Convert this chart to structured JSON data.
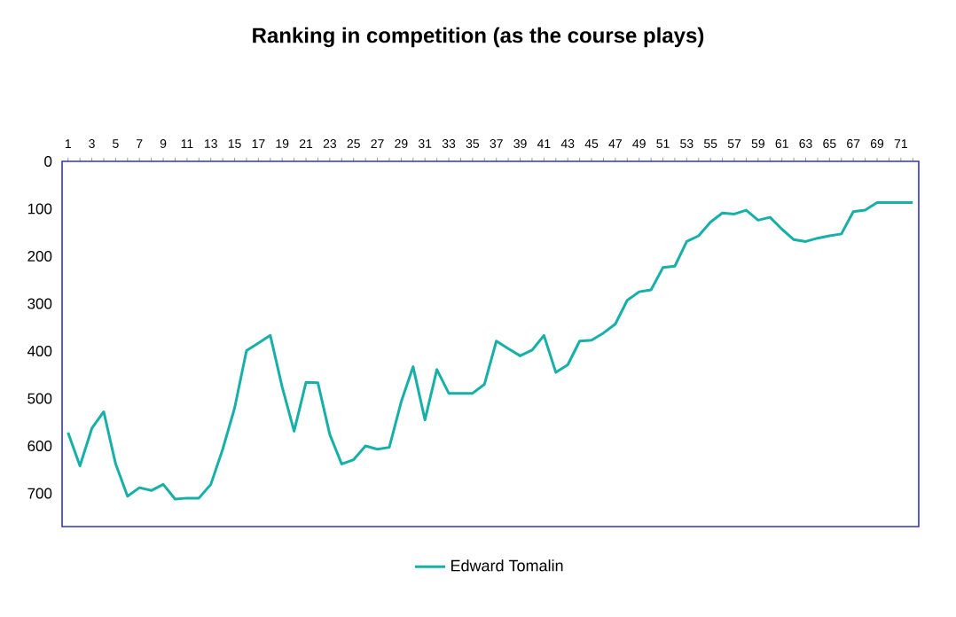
{
  "chart_data": {
    "type": "line",
    "title": "Ranking in competition (as the course plays)",
    "categories": [
      "1",
      null,
      "3",
      null,
      "5",
      null,
      "7",
      null,
      "9",
      null,
      "11",
      null,
      "13",
      null,
      "15",
      null,
      "17",
      null,
      "19",
      null,
      "21",
      null,
      "23",
      null,
      "25",
      null,
      "27",
      null,
      "29",
      null,
      "31",
      null,
      "33",
      null,
      "35",
      null,
      "37",
      null,
      "39",
      null,
      "41",
      null,
      "43",
      null,
      "45",
      null,
      "47",
      null,
      "49",
      null,
      "51",
      null,
      "53",
      null,
      "55",
      null,
      "57",
      null,
      "59",
      null,
      "61",
      null,
      "63",
      null,
      "65",
      null,
      "67",
      null,
      "69",
      null,
      "71",
      null
    ],
    "series": [
      {
        "name": "Edward Tomalin",
        "color": "#17b0a8",
        "values": [
          572,
          642,
          563,
          528,
          638,
          706,
          688,
          694,
          681,
          712,
          710,
          710,
          681,
          607,
          520,
          399,
          383,
          367,
          476,
          569,
          466,
          467,
          576,
          638,
          629,
          600,
          607,
          603,
          507,
          433,
          545,
          439,
          489,
          489,
          489,
          470,
          379,
          395,
          410,
          398,
          367,
          445,
          429,
          379,
          377,
          362,
          343,
          293,
          275,
          271,
          224,
          221,
          169,
          157,
          128,
          109,
          111,
          103,
          124,
          118,
          143,
          165,
          169,
          162,
          157,
          153,
          106,
          103,
          87,
          87,
          87,
          87
        ]
      }
    ],
    "ylim": [
      770,
      0
    ],
    "yticks": [
      0,
      100,
      200,
      300,
      400,
      500,
      600,
      700
    ],
    "grid": false,
    "legend": "bottom",
    "marker": "none",
    "line_style": "solid"
  }
}
